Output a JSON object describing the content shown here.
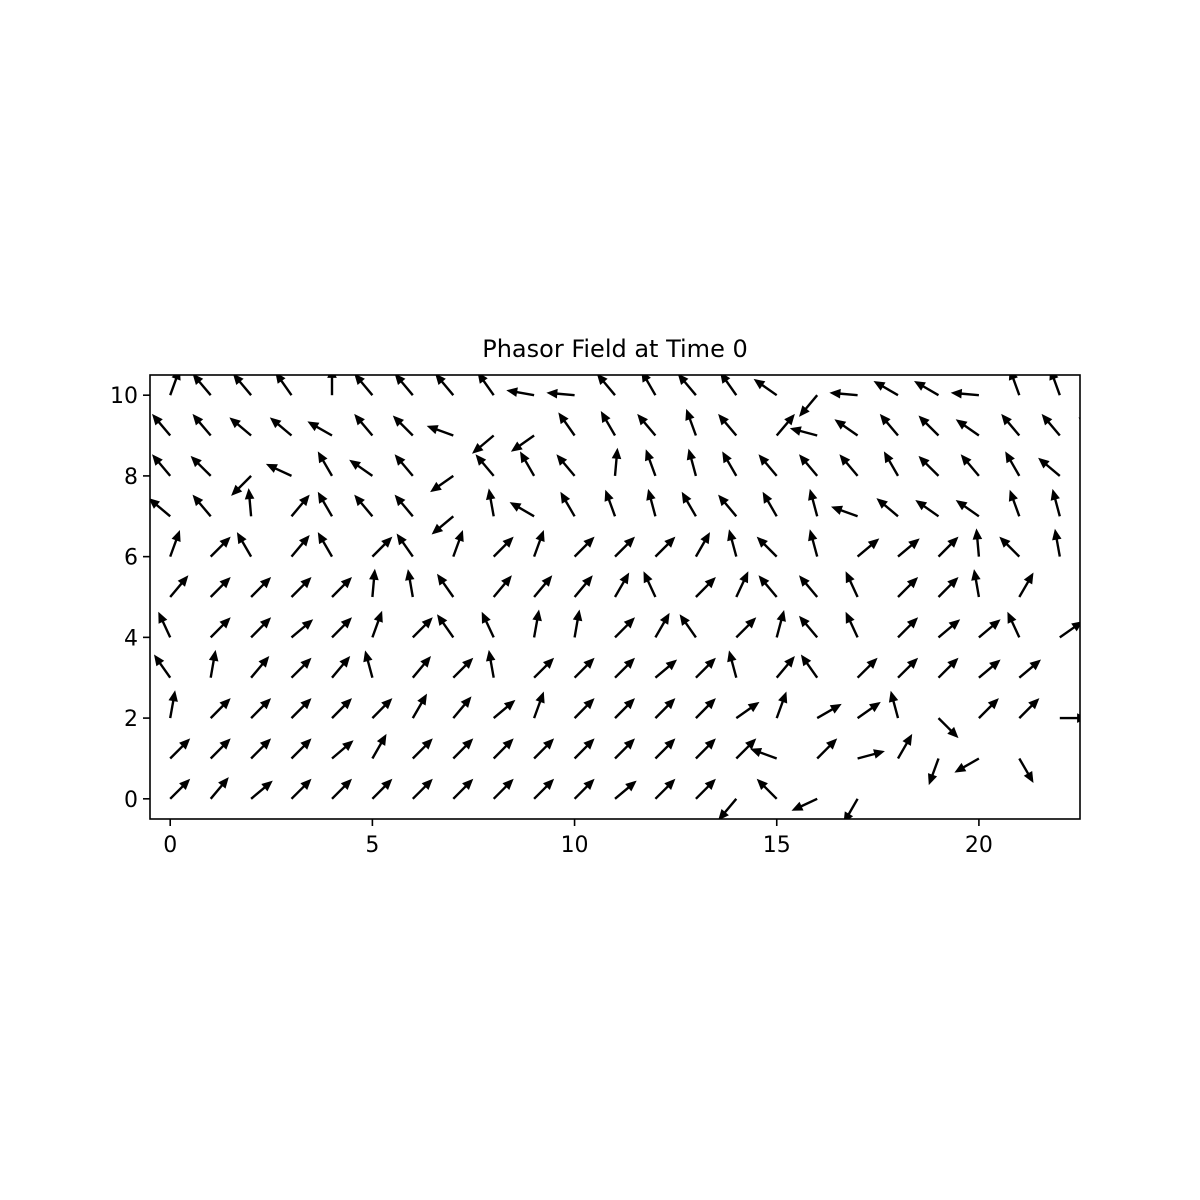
{
  "chart_data": {
    "type": "quiver",
    "title": "Phasor Field at Time 0",
    "xlabel": "",
    "ylabel": "",
    "xlim": [
      -0.5,
      22.5
    ],
    "ylim": [
      -0.5,
      10.5
    ],
    "xticks": [
      0,
      5,
      10,
      15,
      20
    ],
    "yticks": [
      0,
      2,
      4,
      6,
      8,
      10
    ],
    "grid": false,
    "color": "#000000",
    "arrow_length_units": 0.7,
    "rows": [
      {
        "y": 10,
        "angles_deg": [
          70,
          130,
          130,
          125,
          90,
          130,
          130,
          130,
          125,
          170,
          175,
          130,
          120,
          130,
          125,
          145,
          230,
          175,
          150,
          150,
          175,
          110,
          110,
          125,
          130,
          160
        ]
      },
      {
        "y": 9,
        "angles_deg": [
          130,
          130,
          140,
          140,
          150,
          130,
          135,
          160,
          220,
          215,
          125,
          120,
          130,
          110,
          130,
          50,
          165,
          145,
          130,
          135,
          145,
          130,
          130,
          140
        ]
      },
      {
        "y": 8,
        "angles_deg": [
          130,
          135,
          225,
          155,
          120,
          145,
          130,
          215,
          130,
          120,
          130,
          85,
          110,
          105,
          120,
          130,
          130,
          130,
          120,
          135,
          130,
          120,
          140
        ]
      },
      {
        "y": 7,
        "angles_deg": [
          140,
          130,
          95,
          50,
          120,
          130,
          130,
          220,
          100,
          150,
          120,
          110,
          105,
          120,
          130,
          120,
          105,
          160,
          140,
          145,
          145,
          110,
          105
        ]
      },
      {
        "y": 6,
        "angles_deg": [
          70,
          45,
          120,
          50,
          120,
          45,
          125,
          70,
          45,
          70,
          45,
          45,
          45,
          60,
          105,
          135,
          105,
          40,
          40,
          45,
          95,
          135,
          100
        ]
      },
      {
        "y": 5,
        "angles_deg": [
          50,
          45,
          45,
          45,
          45,
          85,
          100,
          125,
          50,
          50,
          50,
          60,
          115,
          45,
          65,
          130,
          130,
          115,
          45,
          45,
          100,
          60
        ]
      },
      {
        "y": 4,
        "angles_deg": [
          115,
          45,
          45,
          40,
          45,
          70,
          45,
          125,
          115,
          80,
          80,
          45,
          60,
          125,
          45,
          75,
          130,
          115,
          45,
          40,
          40,
          115,
          35
        ]
      },
      {
        "y": 3,
        "angles_deg": [
          125,
          80,
          50,
          45,
          50,
          105,
          50,
          45,
          100,
          45,
          45,
          45,
          40,
          45,
          105,
          50,
          125,
          45,
          45,
          45,
          40,
          40
        ]
      },
      {
        "y": 2,
        "angles_deg": [
          80,
          45,
          45,
          45,
          45,
          45,
          60,
          50,
          40,
          70,
          45,
          45,
          45,
          45,
          35,
          70,
          30,
          35,
          105,
          315,
          45,
          45,
          0
        ]
      },
      {
        "y": 1,
        "angles_deg": [
          45,
          45,
          45,
          45,
          40,
          60,
          45,
          45,
          45,
          45,
          45,
          45,
          45,
          45,
          45,
          160,
          45,
          15,
          60,
          250,
          210,
          300
        ]
      },
      {
        "y": 0,
        "angles_deg": [
          45,
          50,
          40,
          45,
          45,
          45,
          45,
          45,
          45,
          45,
          45,
          40,
          45,
          45,
          230,
          135,
          205,
          240
        ]
      }
    ]
  }
}
